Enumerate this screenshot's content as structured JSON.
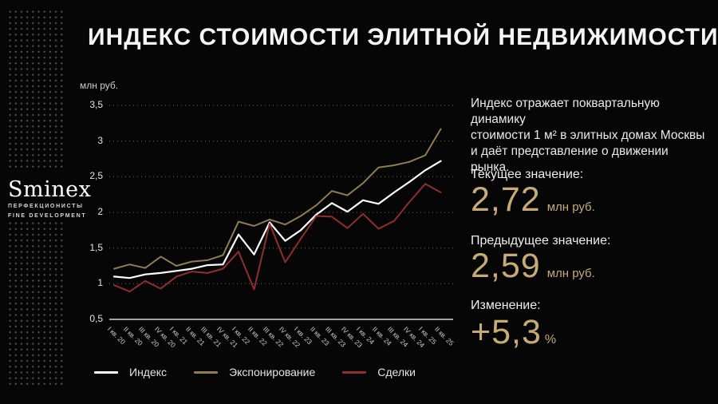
{
  "title": "ИНДЕКС СТОИМОСТИ ЭЛИТНОЙ НЕДВИЖИМОСТИ",
  "brand": {
    "name": "Sminex",
    "tagline_ru": "ПЕРФЕКЦИОНИСТЫ",
    "tagline_en": "FINE DEVELOPMENT"
  },
  "panel": {
    "description": "Индекс отражает поквартальную динамику\nстоимости 1 м² в элитных домах Москвы\nи даёт представление о движении рынка.",
    "current": {
      "label": "Текущее значение:",
      "value": "2,72",
      "unit": "млн руб."
    },
    "previous": {
      "label": "Предыдущее значение:",
      "value": "2,59",
      "unit": "млн руб."
    },
    "change": {
      "label": "Изменение:",
      "value": "+5,3",
      "unit": "%"
    }
  },
  "chart_data": {
    "type": "line",
    "unit_label": "млн руб.",
    "categories": [
      "I кв. 20",
      "II кв. 20",
      "III кв. 20",
      "IV кв. 20",
      "I кв. 21",
      "II кв. 21",
      "III кв. 21",
      "IV кв. 21",
      "I кв. 22",
      "II кв. 22",
      "III кв. 22",
      "IV кв. 22",
      "I кв. 23",
      "II кв. 23",
      "III кв. 23",
      "IV кв. 23",
      "I кв. 24",
      "II кв. 24",
      "III кв. 24",
      "IV кв. 24",
      "I кв. 25",
      "II кв. 25"
    ],
    "series": [
      {
        "key": "index",
        "name": "Индекс",
        "color": "#ffffff",
        "values": [
          1.1,
          1.08,
          1.13,
          1.15,
          1.18,
          1.21,
          1.26,
          1.27,
          1.69,
          1.41,
          1.86,
          1.6,
          1.75,
          1.97,
          2.13,
          2.01,
          2.17,
          2.12,
          2.28,
          2.43,
          2.59,
          2.72
        ]
      },
      {
        "key": "exposure",
        "name": "Экспонирование",
        "color": "#8f7c52",
        "values": [
          1.21,
          1.27,
          1.22,
          1.38,
          1.25,
          1.31,
          1.33,
          1.4,
          1.87,
          1.81,
          1.9,
          1.83,
          1.95,
          2.1,
          2.3,
          2.24,
          2.41,
          2.63,
          2.66,
          2.71,
          2.8,
          3.17
        ]
      },
      {
        "key": "deals",
        "name": "Сделки",
        "color": "#8f2e2e",
        "values": [
          0.98,
          0.89,
          1.04,
          0.93,
          1.1,
          1.17,
          1.15,
          1.21,
          1.45,
          0.92,
          1.84,
          1.3,
          1.63,
          1.95,
          1.94,
          1.78,
          1.98,
          1.77,
          1.88,
          2.15,
          2.4,
          2.28
        ]
      }
    ],
    "ylim": [
      0.5,
      3.5
    ],
    "yticks": [
      3.5,
      3,
      2.5,
      2,
      1.5,
      1,
      0.5
    ],
    "ytick_labels": [
      "3,5",
      "3",
      "2,5",
      "2",
      "1,5",
      "1",
      "0,5"
    ],
    "grid": "horizontal dotted",
    "legend_position": "bottom-left"
  },
  "colors": {
    "background": "#060606",
    "accent_gold": "#c6ab77",
    "grid": "#6e6750",
    "axis": "#d9d9d9",
    "dots": "#4d4d4d"
  }
}
